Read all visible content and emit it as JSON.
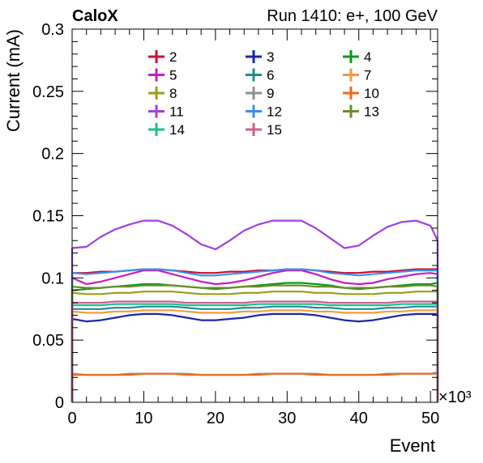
{
  "header": {
    "left_label": "CaloX",
    "right_label": "Run 1410: e+, 100 GeV"
  },
  "chart_data": {
    "type": "line",
    "xlabel": "Event",
    "ylabel": "Current (mA)",
    "x_multiplier_label": "×10³",
    "xlim": [
      0,
      51
    ],
    "ylim": [
      0,
      0.3
    ],
    "x_ticks": [
      0,
      10,
      20,
      30,
      40,
      50
    ],
    "y_ticks": [
      0,
      0.05,
      0.1,
      0.15,
      0.2,
      0.25,
      0.3
    ],
    "x_tick_labels": [
      "0",
      "10",
      "20",
      "30",
      "40",
      "50"
    ],
    "y_tick_labels": [
      "0",
      "0.05",
      "0.1",
      "0.15",
      "0.2",
      "0.25",
      "0.3"
    ],
    "legend_position": "top-center",
    "x": [
      0,
      2,
      4,
      6,
      8,
      10,
      12,
      14,
      16,
      18,
      20,
      22,
      24,
      26,
      28,
      30,
      32,
      34,
      36,
      38,
      40,
      42,
      44,
      46,
      48,
      50,
      51
    ],
    "series": [
      {
        "name": "2",
        "color": "#c8102e",
        "values": [
          0.104,
          0.104,
          0.105,
          0.105,
          0.106,
          0.107,
          0.107,
          0.106,
          0.105,
          0.104,
          0.104,
          0.105,
          0.105,
          0.106,
          0.106,
          0.107,
          0.107,
          0.106,
          0.105,
          0.104,
          0.104,
          0.105,
          0.105,
          0.106,
          0.107,
          0.107,
          0.107
        ]
      },
      {
        "name": "3",
        "color": "#1a27a8",
        "values": [
          0.067,
          0.065,
          0.066,
          0.068,
          0.07,
          0.071,
          0.071,
          0.07,
          0.068,
          0.066,
          0.066,
          0.067,
          0.068,
          0.07,
          0.071,
          0.071,
          0.071,
          0.07,
          0.068,
          0.066,
          0.065,
          0.066,
          0.068,
          0.07,
          0.071,
          0.071,
          0.071
        ]
      },
      {
        "name": "4",
        "color": "#0b9a1c",
        "values": [
          0.09,
          0.091,
          0.092,
          0.093,
          0.094,
          0.095,
          0.095,
          0.094,
          0.093,
          0.092,
          0.091,
          0.092,
          0.093,
          0.094,
          0.095,
          0.096,
          0.096,
          0.095,
          0.094,
          0.092,
          0.091,
          0.092,
          0.093,
          0.094,
          0.095,
          0.095,
          0.096
        ]
      },
      {
        "name": "5",
        "color": "#c31ec3",
        "values": [
          0.1,
          0.095,
          0.097,
          0.1,
          0.103,
          0.106,
          0.106,
          0.103,
          0.1,
          0.097,
          0.095,
          0.096,
          0.098,
          0.101,
          0.104,
          0.106,
          0.106,
          0.103,
          0.099,
          0.096,
          0.095,
          0.096,
          0.099,
          0.101,
          0.103,
          0.104,
          0.103
        ]
      },
      {
        "name": "6",
        "color": "#1f8c8c",
        "values": [
          0.075,
          0.075,
          0.075,
          0.076,
          0.076,
          0.077,
          0.077,
          0.077,
          0.076,
          0.075,
          0.075,
          0.075,
          0.076,
          0.076,
          0.077,
          0.077,
          0.077,
          0.076,
          0.076,
          0.075,
          0.075,
          0.075,
          0.076,
          0.076,
          0.077,
          0.077,
          0.077
        ]
      },
      {
        "name": "7",
        "color": "#f39c3c",
        "values": [
          0.073,
          0.072,
          0.072,
          0.073,
          0.073,
          0.074,
          0.074,
          0.074,
          0.073,
          0.072,
          0.072,
          0.072,
          0.073,
          0.073,
          0.074,
          0.074,
          0.074,
          0.073,
          0.073,
          0.072,
          0.072,
          0.072,
          0.073,
          0.073,
          0.074,
          0.074,
          0.074
        ]
      },
      {
        "name": "8",
        "color": "#9c9c14",
        "values": [
          0.088,
          0.087,
          0.087,
          0.088,
          0.088,
          0.089,
          0.089,
          0.089,
          0.088,
          0.087,
          0.087,
          0.087,
          0.088,
          0.088,
          0.089,
          0.089,
          0.089,
          0.088,
          0.088,
          0.087,
          0.087,
          0.087,
          0.088,
          0.088,
          0.089,
          0.089,
          0.089
        ]
      },
      {
        "name": "9",
        "color": "#8f8f8f",
        "values": [
          0.023,
          0.022,
          0.022,
          0.022,
          0.023,
          0.023,
          0.023,
          0.023,
          0.023,
          0.022,
          0.022,
          0.022,
          0.022,
          0.023,
          0.023,
          0.023,
          0.023,
          0.023,
          0.022,
          0.022,
          0.022,
          0.022,
          0.023,
          0.023,
          0.023,
          0.023,
          0.024
        ]
      },
      {
        "name": "10",
        "color": "#f06a14",
        "values": [
          0.022,
          0.022,
          0.022,
          0.022,
          0.022,
          0.023,
          0.023,
          0.023,
          0.022,
          0.022,
          0.022,
          0.022,
          0.022,
          0.022,
          0.023,
          0.023,
          0.023,
          0.022,
          0.022,
          0.022,
          0.022,
          0.022,
          0.022,
          0.023,
          0.023,
          0.023,
          0.023
        ]
      },
      {
        "name": "11",
        "color": "#a040e0",
        "values": [
          0.124,
          0.125,
          0.133,
          0.139,
          0.143,
          0.146,
          0.146,
          0.142,
          0.135,
          0.127,
          0.123,
          0.13,
          0.138,
          0.143,
          0.146,
          0.146,
          0.146,
          0.14,
          0.132,
          0.124,
          0.126,
          0.134,
          0.141,
          0.145,
          0.146,
          0.142,
          0.13
        ]
      },
      {
        "name": "12",
        "color": "#3a8ff0",
        "values": [
          0.104,
          0.103,
          0.104,
          0.105,
          0.106,
          0.107,
          0.107,
          0.106,
          0.104,
          0.102,
          0.102,
          0.103,
          0.104,
          0.105,
          0.106,
          0.107,
          0.107,
          0.106,
          0.104,
          0.103,
          0.102,
          0.103,
          0.104,
          0.105,
          0.106,
          0.106,
          0.106
        ]
      },
      {
        "name": "13",
        "color": "#6a8f2a",
        "values": [
          0.093,
          0.092,
          0.092,
          0.093,
          0.093,
          0.094,
          0.094,
          0.094,
          0.093,
          0.092,
          0.092,
          0.092,
          0.093,
          0.093,
          0.094,
          0.094,
          0.094,
          0.093,
          0.093,
          0.092,
          0.092,
          0.092,
          0.093,
          0.093,
          0.094,
          0.094,
          0.093
        ]
      },
      {
        "name": "14",
        "color": "#1fbf8f",
        "values": [
          0.078,
          0.078,
          0.078,
          0.079,
          0.079,
          0.079,
          0.079,
          0.079,
          0.078,
          0.078,
          0.078,
          0.078,
          0.078,
          0.079,
          0.079,
          0.079,
          0.079,
          0.079,
          0.078,
          0.078,
          0.078,
          0.078,
          0.078,
          0.079,
          0.079,
          0.079,
          0.079
        ]
      },
      {
        "name": "15",
        "color": "#d0608f",
        "values": [
          0.08,
          0.08,
          0.08,
          0.081,
          0.081,
          0.081,
          0.081,
          0.081,
          0.08,
          0.08,
          0.08,
          0.08,
          0.08,
          0.081,
          0.081,
          0.081,
          0.081,
          0.081,
          0.08,
          0.08,
          0.08,
          0.08,
          0.08,
          0.081,
          0.081,
          0.081,
          0.081
        ]
      }
    ]
  }
}
